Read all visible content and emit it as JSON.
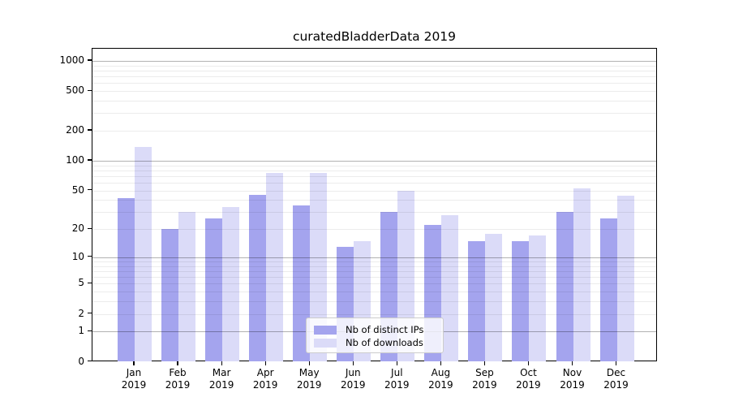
{
  "chart_data": {
    "type": "bar",
    "title": "curatedBladderData 2019",
    "categories": [
      "Jan",
      "Feb",
      "Mar",
      "Apr",
      "May",
      "Jun",
      "Jul",
      "Aug",
      "Sep",
      "Oct",
      "Nov",
      "Dec"
    ],
    "year_label": "2019",
    "series": [
      {
        "name": "Nb of distinct IPs",
        "color": "#a4a4ee",
        "values": [
          42,
          20,
          26,
          45,
          35,
          13,
          30,
          22,
          15,
          15,
          30,
          26
        ]
      },
      {
        "name": "Nb of downloads",
        "color": "#dbdbf8",
        "values": [
          137,
          30,
          34,
          75,
          75,
          15,
          50,
          28,
          18,
          17,
          53,
          44
        ]
      }
    ],
    "yticks": [
      0,
      1,
      2,
      5,
      10,
      20,
      50,
      100,
      200,
      500,
      1000
    ],
    "ylim": [
      0,
      1320
    ],
    "yscale": "log1p",
    "grid": "horizontal",
    "legend_position": "inside-bottom-center",
    "colors": {
      "major_gridline": "#b2b2b2",
      "minor_gridline": "#ececec",
      "frame": "#000000",
      "text": "#000000"
    }
  }
}
